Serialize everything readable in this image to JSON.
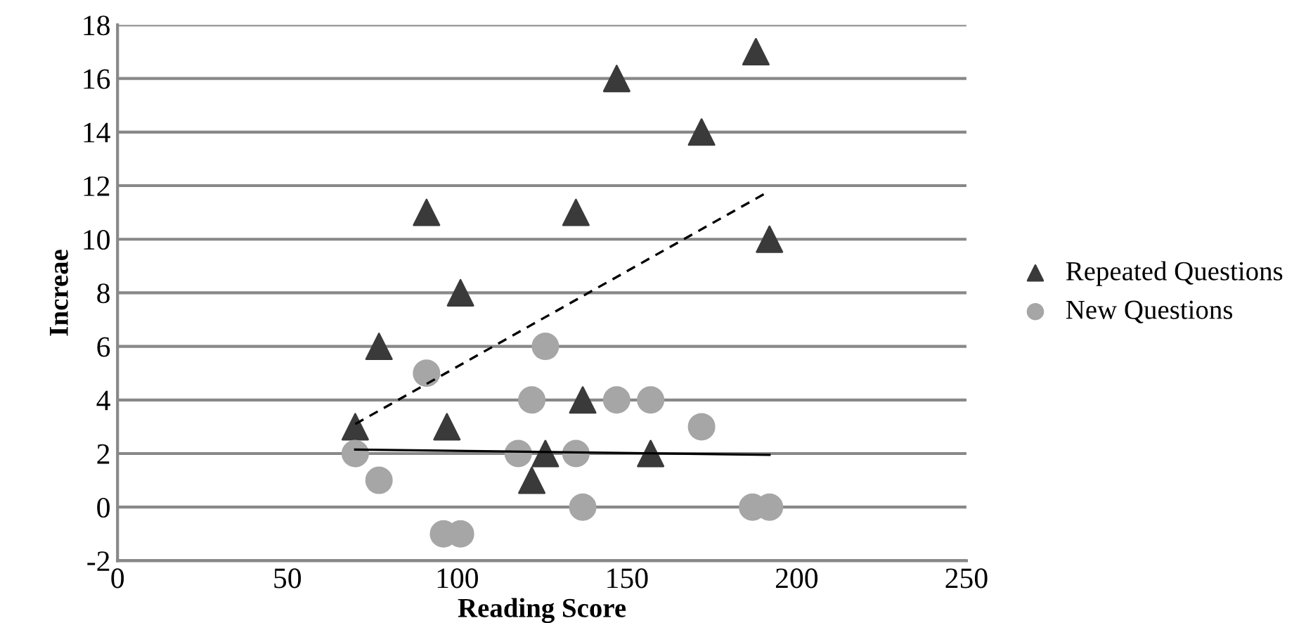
{
  "chart_data": {
    "type": "scatter",
    "xlabel": "Reading Score",
    "ylabel": "Increae",
    "xlim": [
      0,
      250
    ],
    "xticks": [
      0,
      50,
      100,
      150,
      200,
      250
    ],
    "ylim": [
      -2,
      18
    ],
    "yticks": [
      -2,
      0,
      2,
      4,
      6,
      8,
      10,
      12,
      14,
      16,
      18
    ],
    "grid": "y",
    "legend": "right",
    "series": [
      {
        "name": "Repeated Questions",
        "color": "#3a3a3a",
        "marker": "triangle",
        "x": [
          70,
          91,
          77,
          101,
          97,
          122,
          126,
          135,
          137,
          147,
          157,
          172,
          188,
          192
        ],
        "values": [
          3,
          11,
          6,
          8,
          3,
          1,
          2,
          11,
          4,
          16,
          2,
          14,
          17,
          10
        ]
      },
      {
        "name": "New Questions",
        "color": "#a6a6a6",
        "marker": "circle",
        "x": [
          70,
          77,
          91,
          96,
          101,
          118,
          122,
          126,
          135,
          137,
          147,
          157,
          172,
          187,
          192
        ],
        "values": [
          2,
          1,
          5,
          -1,
          -1,
          2,
          4,
          6,
          2,
          0,
          4,
          4,
          3,
          0,
          0
        ]
      },
      {
        "type": "line",
        "color": "#000000",
        "line_style": "dashed",
        "marker": "none",
        "x": [
          70,
          192
        ],
        "values": [
          3.1,
          11.8
        ]
      },
      {
        "type": "line",
        "color": "#000000",
        "line_style": "solid",
        "marker": "none",
        "x": [
          70,
          192
        ],
        "values": [
          2.15,
          1.95
        ]
      }
    ]
  }
}
